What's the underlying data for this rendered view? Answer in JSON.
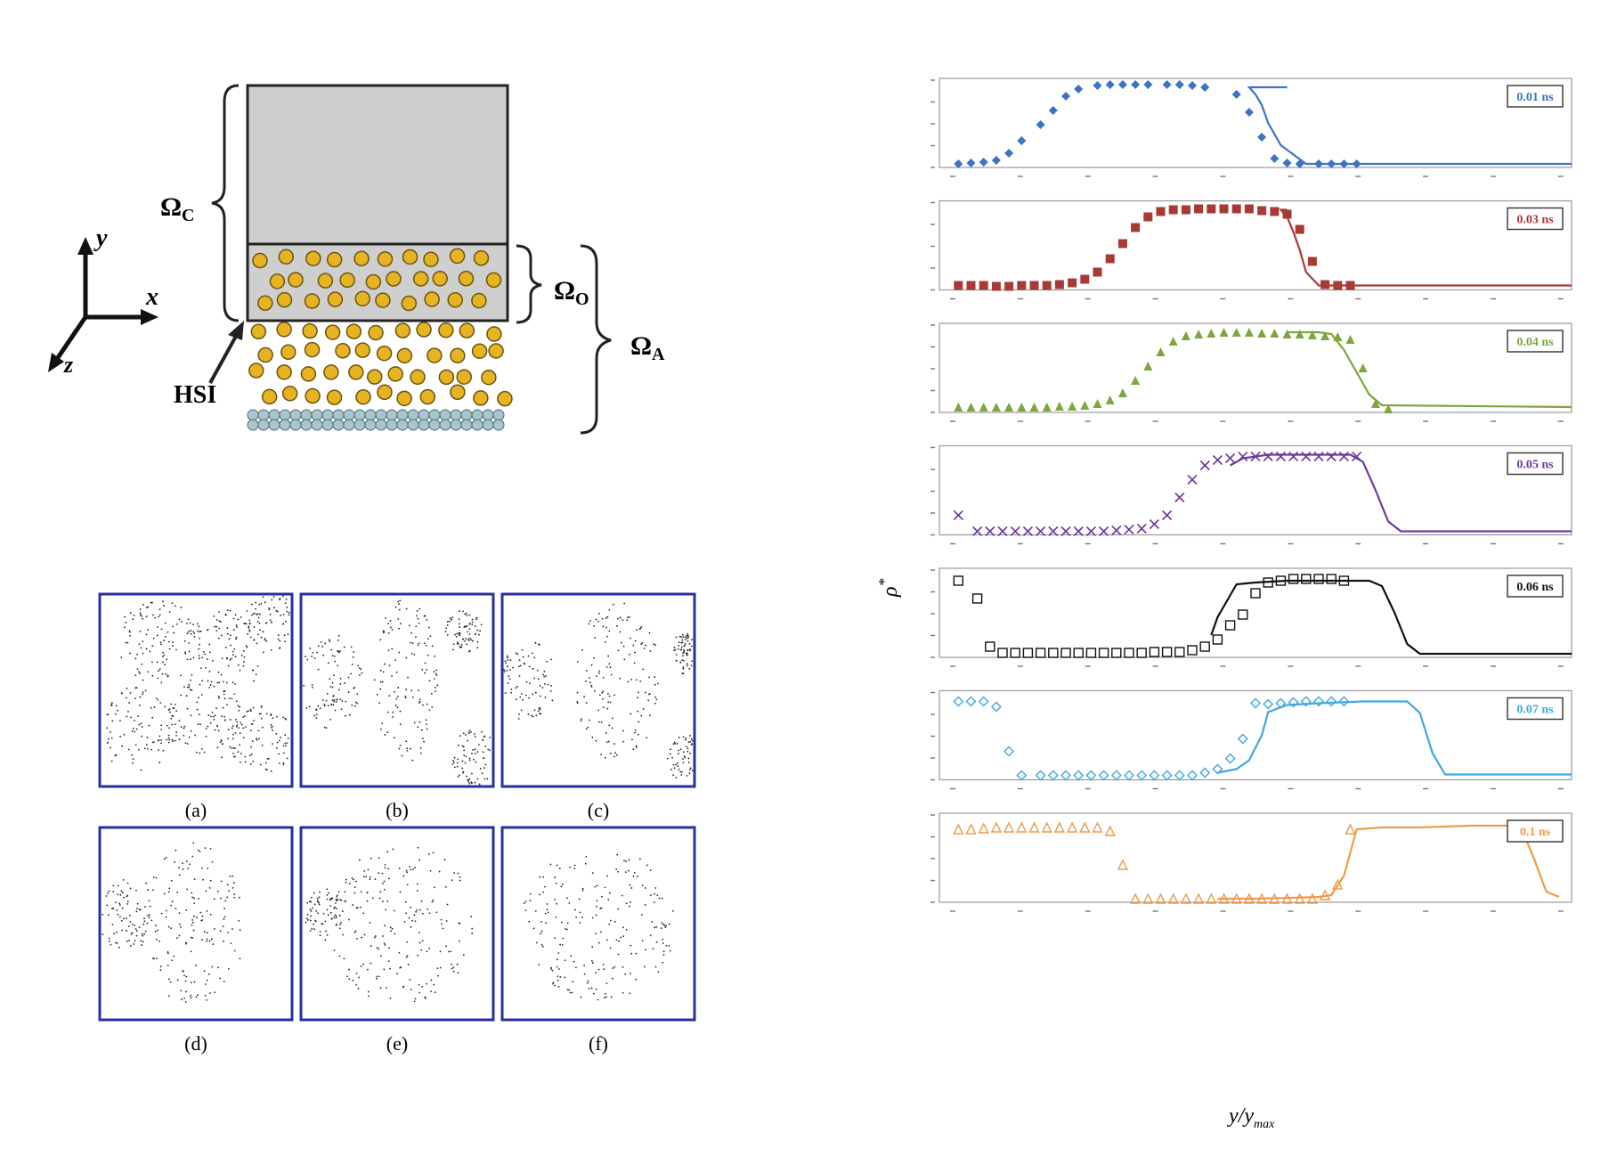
{
  "schematic": {
    "omega_c": {
      "main": "Ω",
      "sub": "C"
    },
    "omega_o": {
      "main": "Ω",
      "sub": "O"
    },
    "omega_a": {
      "main": "Ω",
      "sub": "A"
    },
    "hsi": "HSI",
    "axis_y": "y",
    "axis_x": "x",
    "axis_z": "z",
    "colors": {
      "continuum": "#cfcfcf",
      "particle": "#e6b422",
      "wall": "#a9c6cf"
    }
  },
  "snapshots": [
    {
      "label": "(a)",
      "stage": "dispersed"
    },
    {
      "label": "(b)",
      "stage": "coalescing"
    },
    {
      "label": "(c)",
      "stage": "two-domains"
    },
    {
      "label": "(d)",
      "stage": "merging"
    },
    {
      "label": "(e)",
      "stage": "nearly-merged"
    },
    {
      "label": "(f)",
      "stage": "single-droplet"
    }
  ],
  "chart_data": {
    "type": "line",
    "ylabel_main": "ρ",
    "ylabel_sup": "*",
    "xlabel_main": "y/y",
    "xlabel_sub": "max",
    "xlim": [
      0,
      1
    ],
    "ylim": [
      0,
      1
    ],
    "panels": [
      {
        "time": "0.01 ns",
        "color": "#3d73c4",
        "marker": "diamond",
        "line": {
          "x": [
            0.55,
            0.49,
            0.5,
            0.51,
            0.52,
            0.54,
            0.58,
            1.0
          ],
          "y": [
            0.9,
            0.9,
            0.82,
            0.7,
            0.5,
            0.25,
            0.04,
            0.04
          ]
        },
        "points": {
          "x": [
            0.03,
            0.05,
            0.07,
            0.09,
            0.11,
            0.13,
            0.16,
            0.18,
            0.2,
            0.22,
            0.25,
            0.27,
            0.29,
            0.31,
            0.33,
            0.36,
            0.38,
            0.4,
            0.42,
            0.47,
            0.49,
            0.51,
            0.53,
            0.55,
            0.57,
            0.6,
            0.62,
            0.64,
            0.66
          ],
          "y": [
            0.04,
            0.05,
            0.06,
            0.08,
            0.16,
            0.3,
            0.48,
            0.64,
            0.8,
            0.88,
            0.92,
            0.93,
            0.93,
            0.93,
            0.93,
            0.93,
            0.93,
            0.92,
            0.9,
            0.82,
            0.62,
            0.34,
            0.1,
            0.05,
            0.04,
            0.04,
            0.04,
            0.04,
            0.04
          ]
        }
      },
      {
        "time": "0.03 ns",
        "color": "#a83a36",
        "marker": "square",
        "line": {
          "x": [
            0.55,
            0.54,
            0.55,
            0.56,
            0.57,
            0.58,
            0.6,
            1.0
          ],
          "y": [
            0.9,
            0.9,
            0.82,
            0.65,
            0.45,
            0.2,
            0.05,
            0.05
          ]
        },
        "points": {
          "x": [
            0.03,
            0.05,
            0.07,
            0.09,
            0.11,
            0.13,
            0.15,
            0.17,
            0.19,
            0.21,
            0.23,
            0.25,
            0.27,
            0.29,
            0.31,
            0.33,
            0.35,
            0.37,
            0.39,
            0.41,
            0.43,
            0.45,
            0.47,
            0.49,
            0.51,
            0.53,
            0.55,
            0.57,
            0.59,
            0.61,
            0.63,
            0.65
          ],
          "y": [
            0.05,
            0.05,
            0.05,
            0.04,
            0.04,
            0.05,
            0.05,
            0.05,
            0.06,
            0.08,
            0.12,
            0.2,
            0.35,
            0.52,
            0.7,
            0.82,
            0.88,
            0.9,
            0.9,
            0.91,
            0.91,
            0.91,
            0.91,
            0.91,
            0.89,
            0.88,
            0.85,
            0.68,
            0.32,
            0.06,
            0.05,
            0.05
          ]
        }
      },
      {
        "time": "0.04 ns",
        "color": "#7ea53f",
        "marker": "triangle",
        "line": {
          "x": [
            0.55,
            0.55,
            0.6,
            0.62,
            0.64,
            0.66,
            0.68,
            0.7,
            1.0
          ],
          "y": [
            0.88,
            0.9,
            0.9,
            0.88,
            0.7,
            0.45,
            0.2,
            0.08,
            0.06
          ]
        },
        "points": {
          "x": [
            0.03,
            0.05,
            0.07,
            0.09,
            0.11,
            0.13,
            0.15,
            0.17,
            0.19,
            0.21,
            0.23,
            0.25,
            0.27,
            0.29,
            0.31,
            0.33,
            0.35,
            0.37,
            0.39,
            0.41,
            0.43,
            0.45,
            0.47,
            0.49,
            0.51,
            0.53,
            0.55,
            0.57,
            0.59,
            0.61,
            0.63,
            0.65,
            0.67,
            0.69,
            0.71
          ],
          "y": [
            0.06,
            0.06,
            0.06,
            0.06,
            0.06,
            0.06,
            0.06,
            0.06,
            0.07,
            0.07,
            0.08,
            0.1,
            0.14,
            0.22,
            0.36,
            0.52,
            0.68,
            0.8,
            0.86,
            0.88,
            0.89,
            0.9,
            0.9,
            0.9,
            0.89,
            0.89,
            0.88,
            0.88,
            0.87,
            0.86,
            0.85,
            0.82,
            0.5,
            0.1,
            0.04
          ]
        }
      },
      {
        "time": "0.05 ns",
        "color": "#6e3a9e",
        "marker": "x",
        "line": {
          "x": [
            0.46,
            0.48,
            0.52,
            0.58,
            0.65,
            0.67,
            0.69,
            0.71,
            0.73,
            1.0
          ],
          "y": [
            0.78,
            0.86,
            0.9,
            0.9,
            0.9,
            0.82,
            0.5,
            0.15,
            0.04,
            0.04
          ]
        },
        "points": {
          "x": [
            0.03,
            0.06,
            0.08,
            0.1,
            0.12,
            0.14,
            0.16,
            0.18,
            0.2,
            0.22,
            0.24,
            0.26,
            0.28,
            0.3,
            0.32,
            0.34,
            0.36,
            0.38,
            0.4,
            0.42,
            0.44,
            0.46,
            0.48,
            0.5,
            0.52,
            0.54,
            0.56,
            0.58,
            0.6,
            0.62,
            0.64,
            0.66
          ],
          "y": [
            0.22,
            0.04,
            0.04,
            0.04,
            0.04,
            0.04,
            0.04,
            0.04,
            0.04,
            0.04,
            0.04,
            0.04,
            0.05,
            0.06,
            0.07,
            0.12,
            0.22,
            0.42,
            0.62,
            0.78,
            0.84,
            0.86,
            0.88,
            0.88,
            0.88,
            0.88,
            0.88,
            0.88,
            0.88,
            0.88,
            0.88,
            0.88
          ]
        }
      },
      {
        "time": "0.06 ns",
        "color": "#111111",
        "marker": "open-square",
        "line": {
          "x": [
            0.43,
            0.44,
            0.47,
            0.5,
            0.55,
            0.6,
            0.68,
            0.7,
            0.72,
            0.74,
            0.76,
            1.0
          ],
          "y": [
            0.25,
            0.45,
            0.82,
            0.84,
            0.86,
            0.86,
            0.86,
            0.8,
            0.5,
            0.15,
            0.04,
            0.04
          ]
        },
        "points": {
          "x": [
            0.03,
            0.06,
            0.08,
            0.1,
            0.12,
            0.14,
            0.16,
            0.18,
            0.2,
            0.22,
            0.24,
            0.26,
            0.28,
            0.3,
            0.32,
            0.34,
            0.36,
            0.38,
            0.4,
            0.42,
            0.44,
            0.46,
            0.48,
            0.5,
            0.52,
            0.54,
            0.56,
            0.58,
            0.6,
            0.62,
            0.64
          ],
          "y": [
            0.86,
            0.66,
            0.12,
            0.05,
            0.05,
            0.05,
            0.05,
            0.05,
            0.05,
            0.05,
            0.05,
            0.05,
            0.05,
            0.05,
            0.05,
            0.06,
            0.06,
            0.06,
            0.08,
            0.12,
            0.2,
            0.36,
            0.48,
            0.72,
            0.84,
            0.86,
            0.88,
            0.88,
            0.88,
            0.88,
            0.86
          ]
        }
      },
      {
        "time": "0.07 ns",
        "color": "#3fa8e0",
        "marker": "open-diamond",
        "line": {
          "x": [
            0.44,
            0.47,
            0.49,
            0.51,
            0.52,
            0.55,
            0.6,
            0.67,
            0.7,
            0.74,
            0.76,
            0.78,
            0.8,
            1.0
          ],
          "y": [
            0.08,
            0.12,
            0.22,
            0.5,
            0.76,
            0.84,
            0.86,
            0.88,
            0.88,
            0.88,
            0.75,
            0.3,
            0.06,
            0.06
          ]
        },
        "points": {
          "x": [
            0.03,
            0.05,
            0.07,
            0.09,
            0.11,
            0.13,
            0.16,
            0.18,
            0.2,
            0.22,
            0.24,
            0.26,
            0.28,
            0.3,
            0.32,
            0.34,
            0.36,
            0.38,
            0.4,
            0.42,
            0.44,
            0.46,
            0.48,
            0.5,
            0.52,
            0.54,
            0.56,
            0.58,
            0.6,
            0.62,
            0.64
          ],
          "y": [
            0.88,
            0.88,
            0.88,
            0.82,
            0.32,
            0.05,
            0.05,
            0.05,
            0.05,
            0.05,
            0.05,
            0.05,
            0.05,
            0.05,
            0.05,
            0.05,
            0.05,
            0.05,
            0.05,
            0.08,
            0.12,
            0.24,
            0.46,
            0.86,
            0.85,
            0.86,
            0.87,
            0.88,
            0.88,
            0.88,
            0.88
          ]
        }
      },
      {
        "time": "0.1 ns",
        "color": "#ef9a4a",
        "marker": "open-triangle",
        "line": {
          "x": [
            0.44,
            0.5,
            0.56,
            0.6,
            0.62,
            0.64,
            0.66,
            0.7,
            0.76,
            0.84,
            0.9,
            0.92,
            0.94,
            0.96,
            0.98
          ],
          "y": [
            0.04,
            0.04,
            0.05,
            0.06,
            0.08,
            0.3,
            0.82,
            0.84,
            0.84,
            0.86,
            0.86,
            0.84,
            0.5,
            0.12,
            0.06
          ]
        },
        "points": {
          "x": [
            0.03,
            0.05,
            0.07,
            0.09,
            0.11,
            0.13,
            0.15,
            0.17,
            0.19,
            0.21,
            0.23,
            0.25,
            0.27,
            0.29,
            0.31,
            0.33,
            0.35,
            0.37,
            0.39,
            0.41,
            0.43,
            0.45,
            0.47,
            0.49,
            0.51,
            0.53,
            0.55,
            0.57,
            0.59,
            0.61,
            0.63,
            0.65
          ],
          "y": [
            0.82,
            0.82,
            0.83,
            0.84,
            0.84,
            0.84,
            0.84,
            0.84,
            0.84,
            0.84,
            0.84,
            0.84,
            0.8,
            0.42,
            0.04,
            0.04,
            0.04,
            0.04,
            0.04,
            0.04,
            0.04,
            0.04,
            0.04,
            0.04,
            0.04,
            0.04,
            0.04,
            0.04,
            0.04,
            0.08,
            0.2,
            0.82
          ]
        }
      }
    ]
  }
}
